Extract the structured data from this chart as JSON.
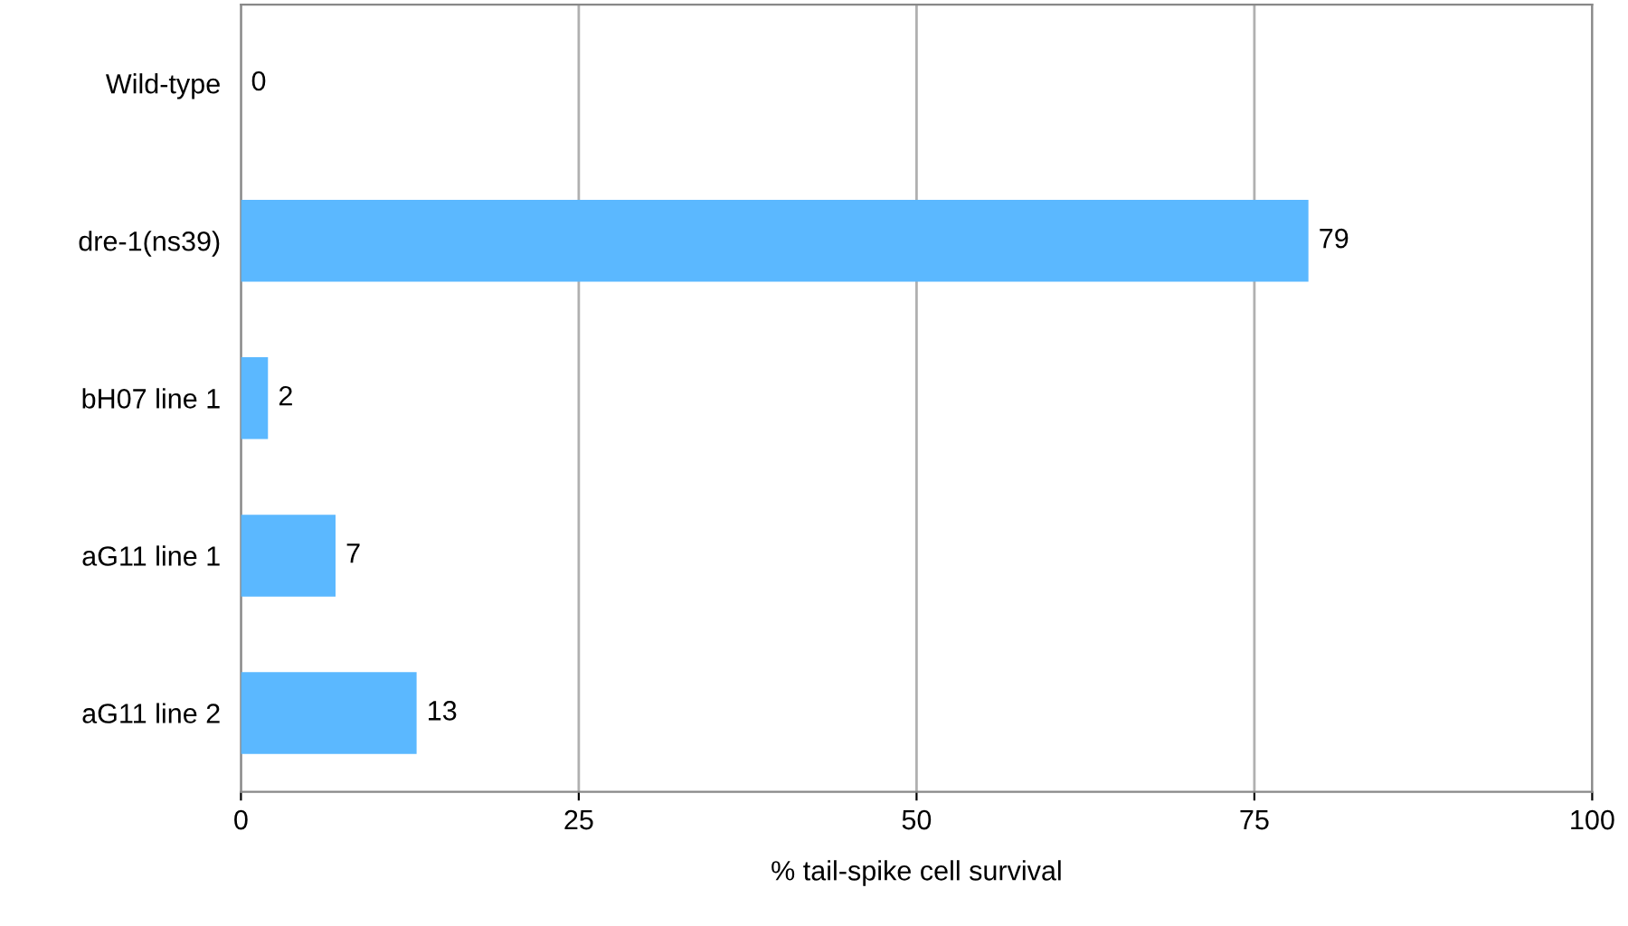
{
  "chart_data": {
    "type": "bar",
    "orientation": "horizontal",
    "xlabel": "% tail-spike cell survival",
    "categories": [
      "Wild-type",
      "dre-1(ns39)",
      "bH07 line 1",
      "aG11 line 1",
      "aG11 line 2"
    ],
    "values": [
      0,
      79,
      2,
      7,
      13
    ],
    "color": "#5bb8ff",
    "xlim": [
      0,
      100
    ],
    "xticks": [
      0,
      25,
      50,
      75,
      100
    ],
    "grid": "x",
    "data_labels": true
  }
}
